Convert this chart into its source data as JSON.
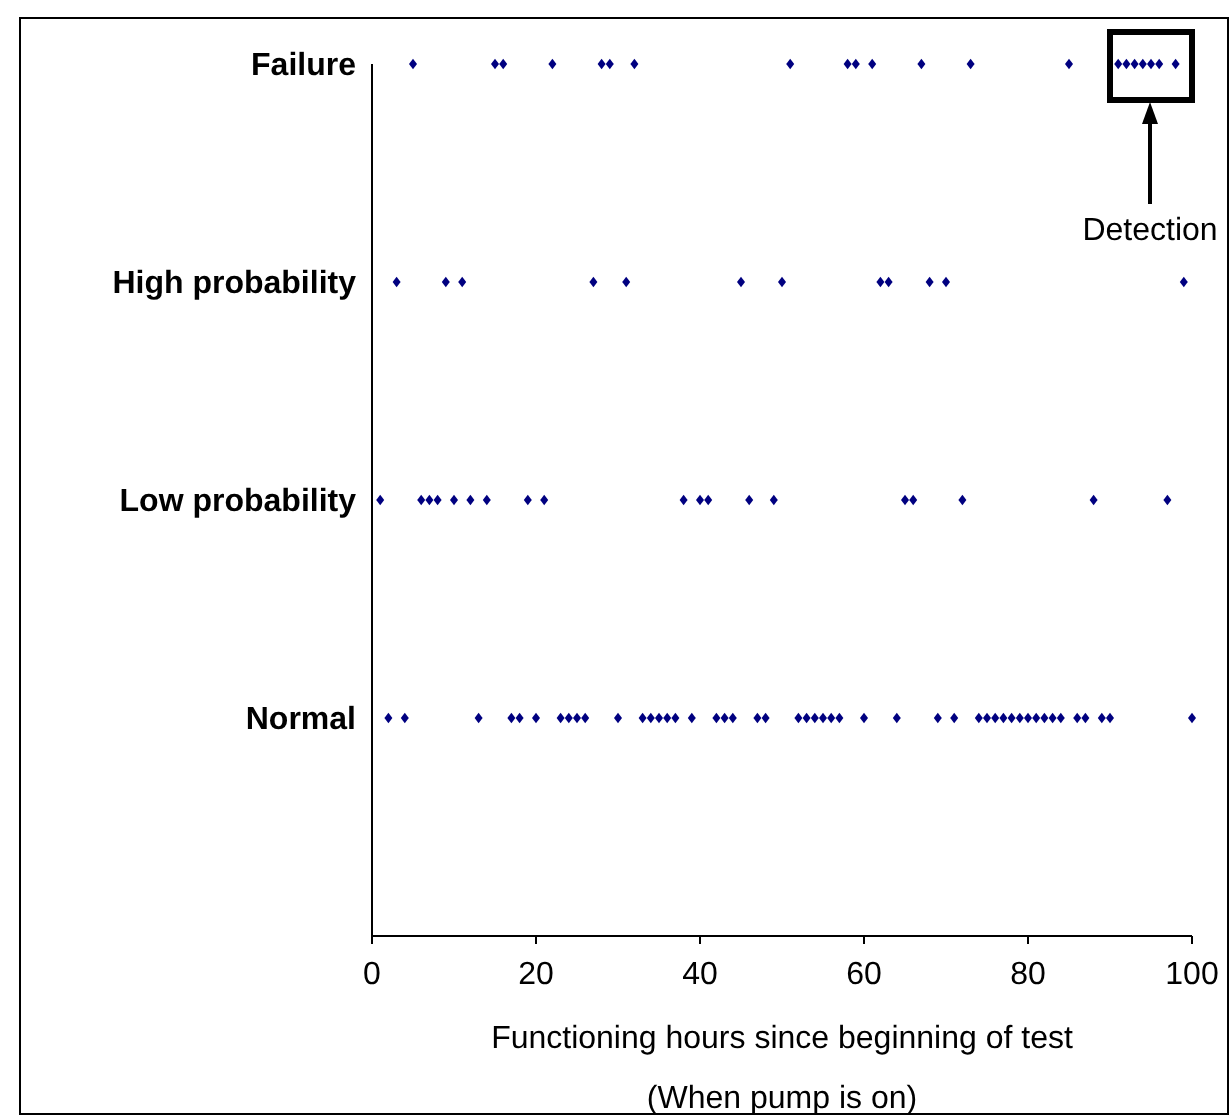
{
  "chart_data": {
    "type": "scatter",
    "orientation": "horizontal",
    "categories": [
      "Failure",
      "High probability",
      "Low probability",
      "Normal"
    ],
    "xlabel": "Functioning hours since beginning of test\n(When pump is on)",
    "xlim": [
      0,
      100
    ],
    "xticks": [
      0,
      20,
      40,
      60,
      80,
      100
    ],
    "marker": "diamond",
    "grid": false,
    "series": [
      {
        "color": "#000080",
        "x": [
          "Failure",
          "Failure",
          "Failure",
          "Failure",
          "Failure",
          "Failure",
          "Failure",
          "Failure",
          "Failure",
          "Failure",
          "Failure",
          "Failure",
          "Failure",
          "Failure",
          "Failure",
          "Failure",
          "Failure",
          "Failure",
          "Failure",
          "Failure",
          "Failure"
        ],
        "values": [
          5,
          15,
          16,
          22,
          28,
          29,
          32,
          51,
          58,
          59,
          61,
          67,
          73,
          85,
          91,
          92,
          93,
          94,
          95,
          96,
          98
        ]
      },
      {
        "color": "#000080",
        "x": [
          "High probability",
          "High probability",
          "High probability",
          "High probability",
          "High probability",
          "High probability",
          "High probability",
          "High probability",
          "High probability",
          "High probability",
          "High probability",
          "High probability"
        ],
        "values": [
          3,
          9,
          11,
          27,
          31,
          45,
          50,
          62,
          63,
          68,
          70,
          99
        ]
      },
      {
        "color": "#000080",
        "x": [
          "Low probability",
          "Low probability",
          "Low probability",
          "Low probability",
          "Low probability",
          "Low probability",
          "Low probability",
          "Low probability",
          "Low probability",
          "Low probability",
          "Low probability",
          "Low probability",
          "Low probability",
          "Low probability",
          "Low probability",
          "Low probability",
          "Low probability",
          "Low probability",
          "Low probability"
        ],
        "values": [
          1,
          6,
          7,
          8,
          10,
          12,
          14,
          19,
          21,
          38,
          40,
          41,
          46,
          49,
          65,
          66,
          72,
          88,
          97
        ]
      },
      {
        "color": "#000080",
        "x": [
          "Normal",
          "Normal",
          "Normal",
          "Normal",
          "Normal",
          "Normal",
          "Normal",
          "Normal",
          "Normal",
          "Normal",
          "Normal",
          "Normal",
          "Normal",
          "Normal",
          "Normal",
          "Normal",
          "Normal",
          "Normal",
          "Normal",
          "Normal",
          "Normal",
          "Normal",
          "Normal",
          "Normal",
          "Normal",
          "Normal",
          "Normal",
          "Normal",
          "Normal",
          "Normal",
          "Normal",
          "Normal",
          "Normal",
          "Normal",
          "Normal",
          "Normal",
          "Normal",
          "Normal",
          "Normal",
          "Normal",
          "Normal",
          "Normal",
          "Normal",
          "Normal",
          "Normal",
          "Normal",
          "Normal",
          "Normal"
        ],
        "values": [
          2,
          4,
          13,
          17,
          18,
          20,
          23,
          24,
          25,
          26,
          30,
          33,
          34,
          35,
          36,
          37,
          39,
          42,
          43,
          44,
          47,
          48,
          52,
          53,
          54,
          55,
          56,
          57,
          60,
          64,
          69,
          71,
          74,
          75,
          76,
          77,
          78,
          79,
          80,
          81,
          82,
          83,
          84,
          86,
          87,
          89,
          90,
          100
        ]
      }
    ],
    "annotations": [
      "Detection"
    ]
  }
}
